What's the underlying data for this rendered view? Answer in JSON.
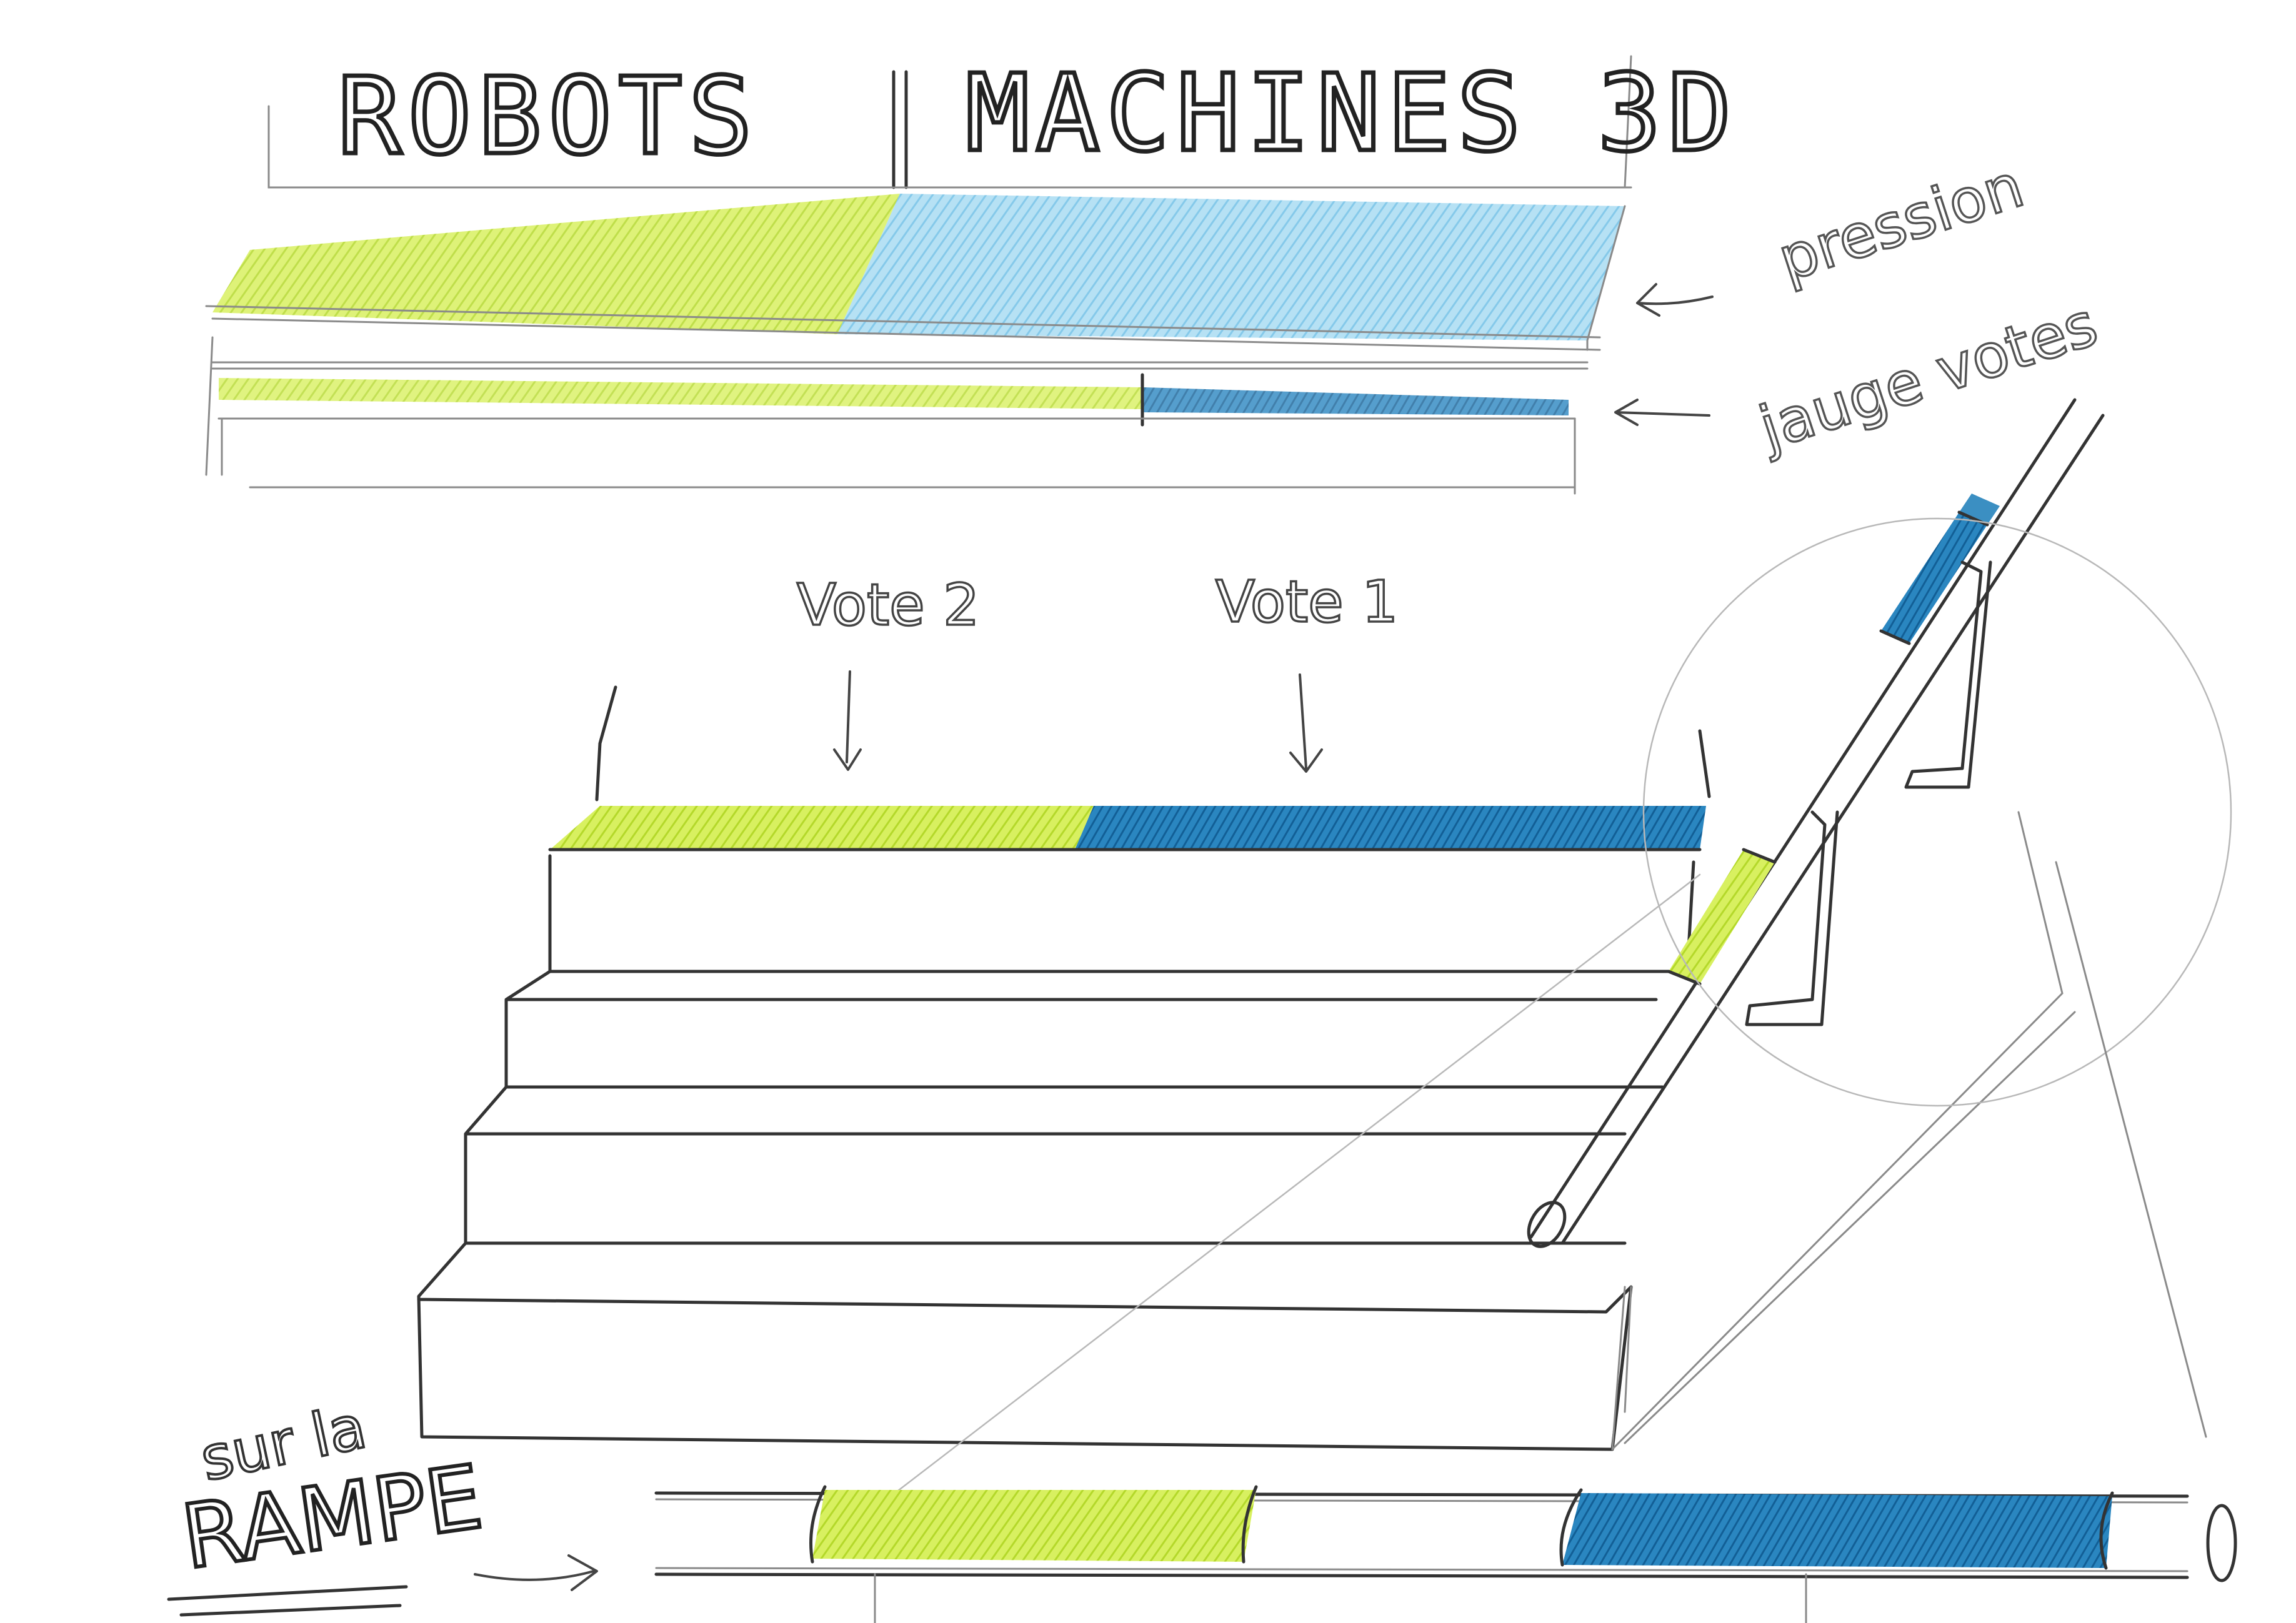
{
  "sign": {
    "title_left": "ROBOTS",
    "title_right": "MACHINES 3D"
  },
  "annotations": {
    "pressure": "pression",
    "vote_gauge": "jauge votes",
    "vote_2": "Vote 2",
    "vote_1": "Vote 1",
    "ramp_line1": "sur la",
    "ramp_line2": "RAMPE"
  },
  "colors": {
    "robots_green": "#c6e83a",
    "machines_blue_light": "#8fd0ee",
    "machines_blue_dark": "#1f7fb8",
    "pencil": "#333333"
  }
}
